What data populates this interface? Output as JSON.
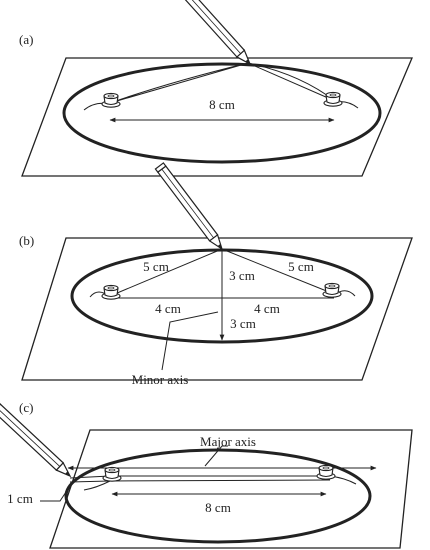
{
  "panels": [
    {
      "label": "(a)",
      "measurements": [
        "8 cm"
      ]
    },
    {
      "label": "(b)",
      "measurements": [
        "5 cm",
        "5 cm",
        "3 cm",
        "4 cm",
        "4 cm",
        "3 cm"
      ],
      "callout": "Minor axis"
    },
    {
      "label": "(c)",
      "measurements": [
        "8 cm",
        "1 cm"
      ],
      "callout": "Major axis"
    }
  ],
  "colors": {
    "ink": "#222222",
    "paper": "#ffffff"
  }
}
